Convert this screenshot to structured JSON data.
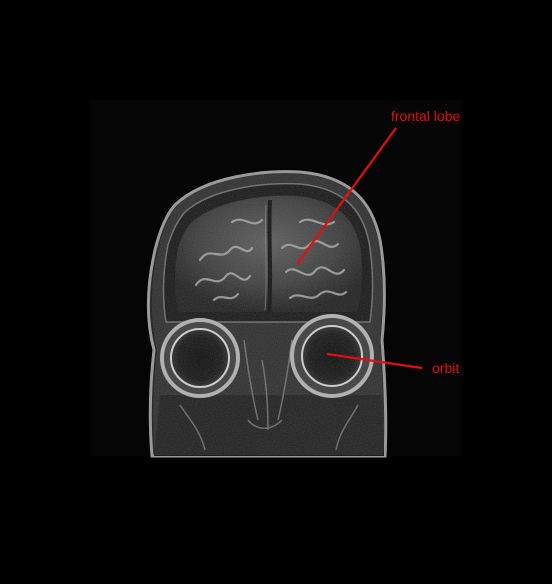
{
  "figure": {
    "background_color": "#000000",
    "annotation_color": "#e01010",
    "annotations": [
      {
        "id": "frontal-lobe",
        "text": "frontal lobe"
      },
      {
        "id": "orbit",
        "text": "orbit"
      }
    ]
  }
}
